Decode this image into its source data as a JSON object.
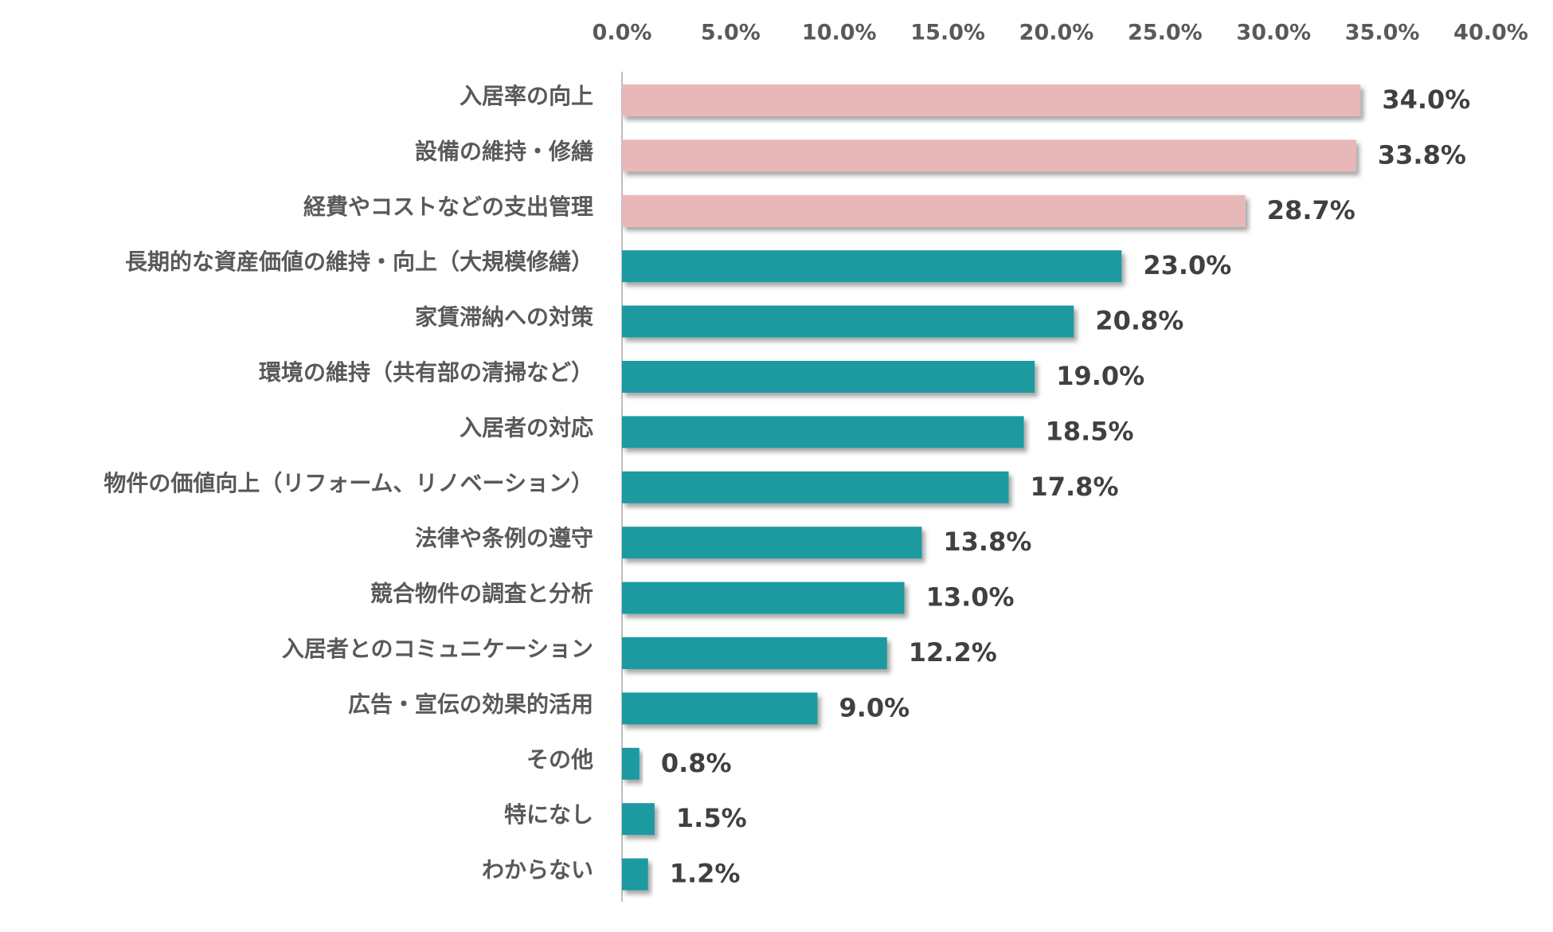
{
  "chart_data": {
    "type": "barh",
    "categories": [
      "入居率の向上",
      "設備の維持・修繕",
      "経費やコストなどの支出管理",
      "長期的な資産価値の維持・向上（大規模修繕）",
      "家賃滞納への対策",
      "環境の維持（共有部の清掃など）",
      "入居者の対応",
      "物件の価値向上（リフォーム、リノベーション）",
      "法律や条例の遵守",
      "競合物件の調査と分析",
      "入居者とのコミュニケーション",
      "広告・宣伝の効果的活用",
      "その他",
      "特になし",
      "わからない"
    ],
    "values": [
      34.0,
      33.8,
      28.7,
      23.0,
      20.8,
      19.0,
      18.5,
      17.8,
      13.8,
      13.0,
      12.2,
      9.0,
      0.8,
      1.5,
      1.2
    ],
    "value_labels": [
      "34.0%",
      "33.8%",
      "28.7%",
      "23.0%",
      "20.8%",
      "19.0%",
      "18.5%",
      "17.8%",
      "13.8%",
      "13.0%",
      "12.2%",
      "9.0%",
      "0.8%",
      "1.5%",
      "1.2%"
    ],
    "colors": [
      "#e8b8b9",
      "#e8b8b9",
      "#e8b8b9",
      "#1b9aa0",
      "#1b9aa0",
      "#1b9aa0",
      "#1b9aa0",
      "#1b9aa0",
      "#1b9aa0",
      "#1b9aa0",
      "#1b9aa0",
      "#1b9aa0",
      "#1b9aa0",
      "#1b9aa0",
      "#1b9aa0"
    ],
    "xlim": [
      0,
      40
    ],
    "xticks": [
      {
        "value": 0,
        "label": "0.0%"
      },
      {
        "value": 5,
        "label": "5.0%"
      },
      {
        "value": 10,
        "label": "10.0%"
      },
      {
        "value": 15,
        "label": "15.0%"
      },
      {
        "value": 20,
        "label": "20.0%"
      },
      {
        "value": 25,
        "label": "25.0%"
      },
      {
        "value": 30,
        "label": "30.0%"
      },
      {
        "value": 35,
        "label": "35.0%"
      },
      {
        "value": 40,
        "label": "40.0%"
      }
    ],
    "grid": false
  }
}
